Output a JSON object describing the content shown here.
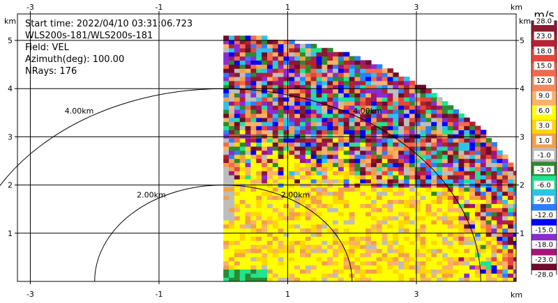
{
  "chart_data": {
    "type": "heatmap",
    "title_lines": [
      "Start time: 2022/04/10 03:31:06.723",
      "WLS200s-181/WLS200s-181",
      "Field: VEL",
      "Azimuth(deg): 100.00",
      "NRays: 176"
    ],
    "axis_unit_label": "km",
    "x_ticks": [
      -3,
      -1,
      1,
      3
    ],
    "y_ticks": [
      1,
      2,
      3,
      4,
      5
    ],
    "xlim": [
      -3.2,
      4.55
    ],
    "ylim": [
      0,
      5.55
    ],
    "grid": true,
    "range_rings": [
      {
        "radius_km": 2,
        "label": "2.00km"
      },
      {
        "radius_km": 4,
        "label": "4.00km"
      }
    ],
    "sector": {
      "azimuth_start_deg": 0,
      "azimuth_end_deg": 90,
      "max_range_km": 5.1
    },
    "colorbar": {
      "units": "m/s",
      "ticks": [
        "28.0",
        "23.0",
        "18.0",
        "15.0",
        "12.0",
        "9.0",
        "6.0",
        "3.0",
        "1.0",
        "-1.0",
        "-3.0",
        "-6.0",
        "-9.0",
        "-12.0",
        "-15.0",
        "-18.0",
        "-23.0",
        "-28.0"
      ],
      "colors": [
        "#8c1a2e",
        "#b22233",
        "#e8453c",
        "#f4694a",
        "#f58a60",
        "#fbb268",
        "#ffff00",
        "#ffd600",
        "#f3a04a",
        "#bdbdbd",
        "#2d8a2d",
        "#22e38f",
        "#2fc1ec",
        "#2b7fff",
        "#0000ff",
        "#8b2bd6",
        "#a51577",
        "#6e0b2e"
      ]
    }
  }
}
